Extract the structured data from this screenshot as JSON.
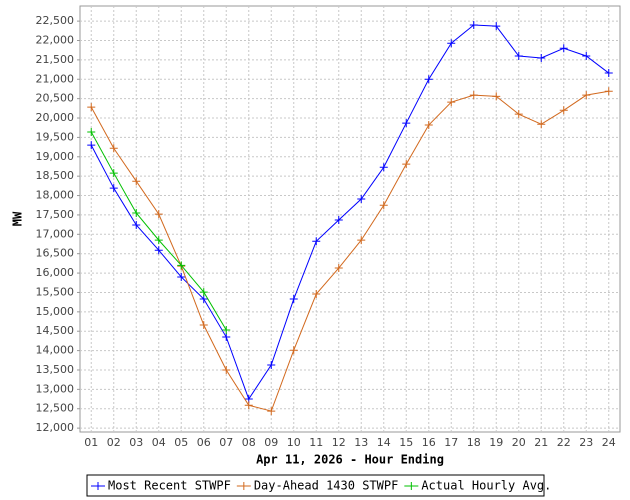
{
  "chart_data": {
    "type": "line",
    "xlabel": "Apr 11, 2026 - Hour Ending",
    "ylabel": "MW",
    "categories": [
      "01",
      "02",
      "03",
      "04",
      "05",
      "06",
      "07",
      "08",
      "09",
      "10",
      "11",
      "12",
      "13",
      "14",
      "15",
      "16",
      "17",
      "18",
      "19",
      "20",
      "21",
      "22",
      "23",
      "24"
    ],
    "series": [
      {
        "name": "Most Recent STWPF",
        "color": "#0000ff",
        "values": [
          19300,
          18190,
          17240,
          16590,
          15900,
          15330,
          14350,
          12750,
          13630,
          15330,
          16820,
          17370,
          17910,
          18730,
          19870,
          21000,
          21930,
          22400,
          22370,
          21600,
          21550,
          21800,
          21600,
          21160
        ]
      },
      {
        "name": "Day-Ahead 1430 STWPF",
        "color": "#d2691e",
        "values": [
          20280,
          19220,
          18370,
          17520,
          16180,
          14660,
          13500,
          12590,
          12440,
          14010,
          15460,
          16130,
          16850,
          17750,
          18810,
          19820,
          20410,
          20590,
          20560,
          20100,
          19840,
          20200,
          20590,
          20690
        ]
      },
      {
        "name": "Actual Hourly Avg.",
        "color": "#00c000",
        "values": [
          19640,
          18580,
          17550,
          16850,
          16200,
          15510,
          14530,
          null,
          null,
          null,
          null,
          null,
          null,
          null,
          null,
          null,
          null,
          null,
          null,
          null,
          null,
          null,
          null,
          null
        ]
      }
    ],
    "ylim": [
      11900,
      22890
    ],
    "yticks": [
      {
        "value": 12000,
        "label": "12,000"
      },
      {
        "value": 12500,
        "label": "12,500"
      },
      {
        "value": 13000,
        "label": "13,000"
      },
      {
        "value": 13500,
        "label": "13,500"
      },
      {
        "value": 14000,
        "label": "14,000"
      },
      {
        "value": 14500,
        "label": "14,500"
      },
      {
        "value": 15000,
        "label": "15,000"
      },
      {
        "value": 15500,
        "label": "15,500"
      },
      {
        "value": 16000,
        "label": "16,000"
      },
      {
        "value": 16500,
        "label": "16,500"
      },
      {
        "value": 17000,
        "label": "17,000"
      },
      {
        "value": 17500,
        "label": "17,500"
      },
      {
        "value": 18000,
        "label": "18,000"
      },
      {
        "value": 18500,
        "label": "18,500"
      },
      {
        "value": 19000,
        "label": "19,000"
      },
      {
        "value": 19500,
        "label": "19,500"
      },
      {
        "value": 20000,
        "label": "20,000"
      },
      {
        "value": 20500,
        "label": "20,500"
      },
      {
        "value": 21000,
        "label": "21,000"
      },
      {
        "value": 21500,
        "label": "21,500"
      },
      {
        "value": 22000,
        "label": "22,000"
      },
      {
        "value": 22500,
        "label": "22,500"
      }
    ],
    "grid": true,
    "legend": "bottom"
  }
}
